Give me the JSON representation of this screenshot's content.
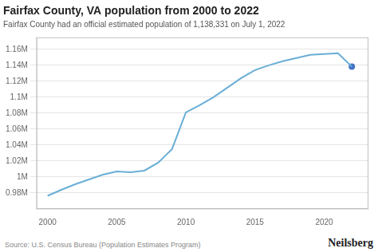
{
  "chart_data": {
    "type": "line",
    "title": "Fairfax County, VA population from 2000 to 2022",
    "subtitle": "Fairfax County had an official estimated population of 1,138,331 on July 1, 2022",
    "source": "Source: U.S. Census Bureau (Population Estimates Program)",
    "brand": "Neilsberg",
    "x": [
      2000,
      2001,
      2002,
      2003,
      2004,
      2005,
      2006,
      2007,
      2008,
      2009,
      2010,
      2011,
      2012,
      2013,
      2014,
      2015,
      2016,
      2017,
      2018,
      2019,
      2020,
      2021,
      2022
    ],
    "series": [
      {
        "color": "#6aaed6",
        "values": [
          976490,
          984000,
          991000,
          997000,
          1003000,
          1007000,
          1006000,
          1008000,
          1018000,
          1035000,
          1081000,
          1090000,
          1100000,
          1112000,
          1124000,
          1134000,
          1140000,
          1145000,
          1149000,
          1153000,
          1154000,
          1155000,
          1138331
        ]
      },
      {
        "type": "scatter",
        "color": "#4472c4",
        "values": [
          null,
          null,
          null,
          null,
          null,
          null,
          null,
          null,
          null,
          null,
          null,
          null,
          null,
          null,
          null,
          null,
          null,
          null,
          null,
          null,
          null,
          null,
          1138331
        ]
      }
    ],
    "xlim": [
      1999.2,
      2023.2
    ],
    "xticks": [
      2000,
      2005,
      2010,
      2015,
      2020
    ],
    "ylim": [
      960000,
      1175000
    ],
    "yticks": [
      {
        "value": 980000,
        "label": "0.98M"
      },
      {
        "value": 1000000,
        "label": "1M"
      },
      {
        "value": 1020000,
        "label": "1.02M"
      },
      {
        "value": 1040000,
        "label": "1.04M"
      },
      {
        "value": 1060000,
        "label": "1.06M"
      },
      {
        "value": 1080000,
        "label": "1.08M"
      },
      {
        "value": 1100000,
        "label": "1.1M"
      },
      {
        "value": 1120000,
        "label": "1.12M"
      },
      {
        "value": 1140000,
        "label": "1.14M"
      },
      {
        "value": 1160000,
        "label": "1.16M"
      }
    ],
    "grid": "y"
  }
}
